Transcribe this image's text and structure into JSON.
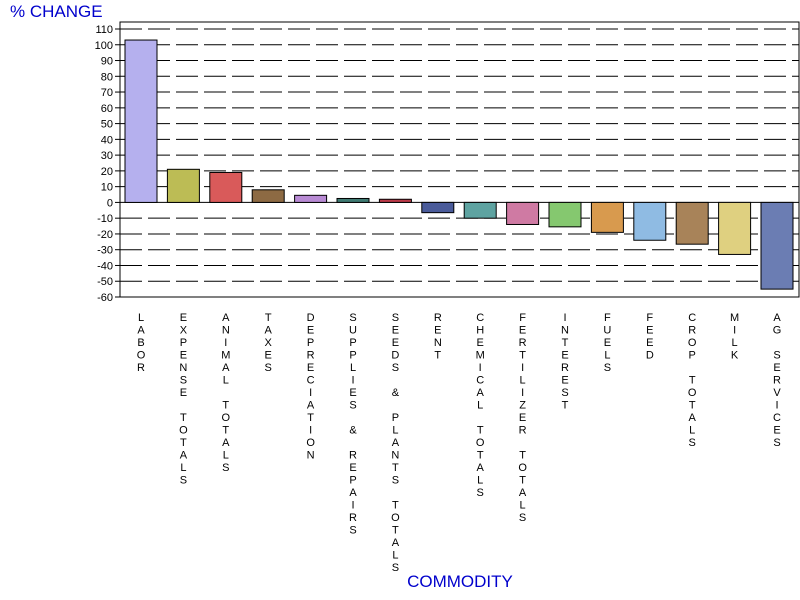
{
  "chart_data": {
    "type": "bar",
    "ylabel": "% CHANGE",
    "xlabel": "COMMODITY",
    "ylim": [
      -60,
      110
    ],
    "yticks": [
      110,
      100,
      90,
      80,
      70,
      60,
      50,
      40,
      30,
      20,
      10,
      0,
      -10,
      -20,
      -30,
      -40,
      -50,
      -60
    ],
    "grid": "horizontal dashed",
    "categories": [
      "LABOR",
      "EXPENSE TOTALS",
      "ANIMAL TOTALS",
      "TAXES",
      "DEPRECIATION",
      "SUPPLIES & REPAIRS",
      "SEEDS & PLANTS TOTALS",
      "RENT",
      "CHEMICAL TOTALS",
      "FERTILIZER TOTALS",
      "INTEREST",
      "FUELS",
      "FEED",
      "CROP TOTALS",
      "MILK",
      "AG SERVICES"
    ],
    "values": [
      103,
      21,
      19,
      8,
      4.5,
      2.5,
      2,
      -6.5,
      -10,
      -14,
      -15.5,
      -19,
      -24,
      -26.5,
      -33,
      -55
    ],
    "colors": [
      "#b5b0ee",
      "#bcbc55",
      "#d95a5a",
      "#8d6a43",
      "#b88ad4",
      "#3f7a72",
      "#bb3a48",
      "#4a5b9a",
      "#5ea3a1",
      "#cf7aa3",
      "#85c86f",
      "#d89a4e",
      "#8fbbe3",
      "#a88359",
      "#dfd080",
      "#6b7db3"
    ]
  }
}
